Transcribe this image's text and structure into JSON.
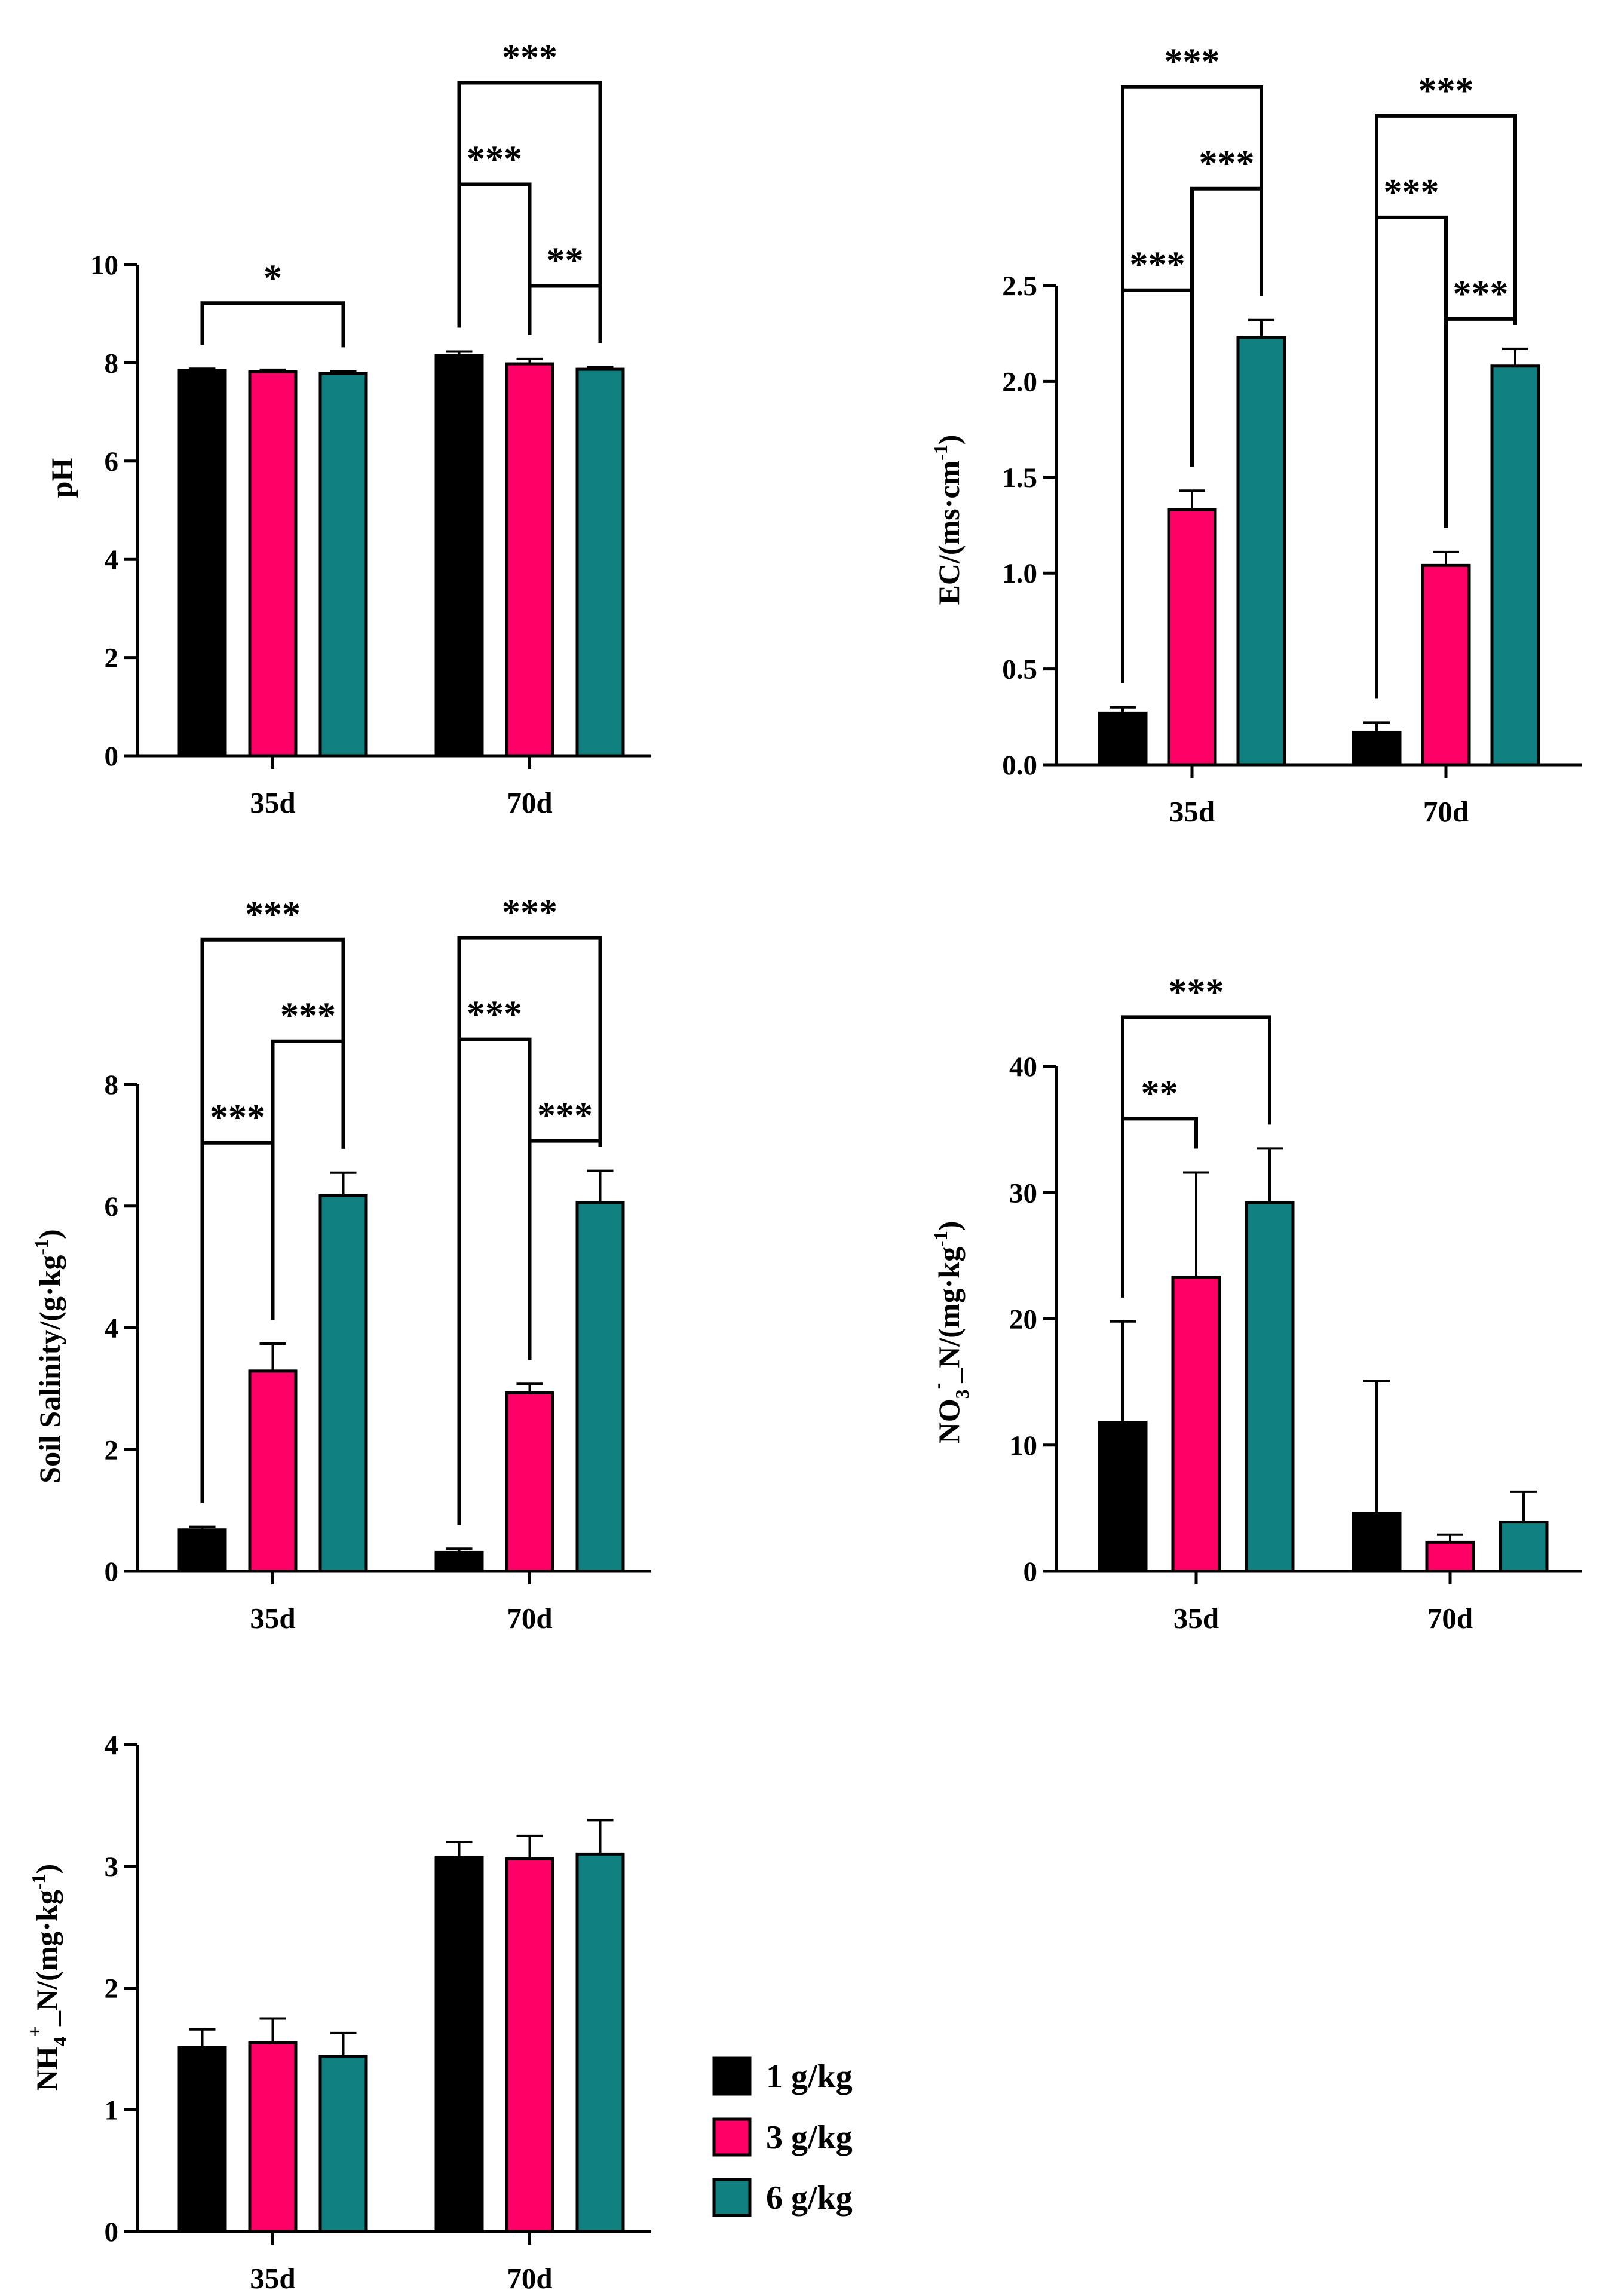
{
  "legend": {
    "items": [
      {
        "label": "1 g/kg",
        "color": "#000000"
      },
      {
        "label": "3 g/kg",
        "color": "#FF0066"
      },
      {
        "label": "6 g/kg",
        "color": "#108080"
      }
    ]
  },
  "chart_data": [
    {
      "id": "ph",
      "type": "bar",
      "title": "",
      "ylabel": "pH",
      "ylim": [
        0,
        10
      ],
      "yticks": [
        "0",
        "2",
        "4",
        "6",
        "8",
        "10"
      ],
      "categories": [
        "35d",
        "70d"
      ],
      "series": [
        {
          "name": "1 g/kg",
          "values": [
            7.85,
            8.15
          ],
          "errors": [
            0.03,
            0.08
          ]
        },
        {
          "name": "3 g/kg",
          "values": [
            7.82,
            7.98
          ],
          "errors": [
            0.04,
            0.1
          ]
        },
        {
          "name": "6 g/kg",
          "values": [
            7.78,
            7.87
          ],
          "errors": [
            0.05,
            0.05
          ]
        }
      ],
      "significance": [
        {
          "category": 0,
          "from": 0,
          "to": 2,
          "level": 1,
          "label": "*"
        },
        {
          "category": 1,
          "from": 1,
          "to": 2,
          "level": 1,
          "label": "**"
        },
        {
          "category": 1,
          "from": 0,
          "to": 1,
          "level": 2,
          "label": "***"
        },
        {
          "category": 1,
          "from": 0,
          "to": 2,
          "level": 3,
          "label": "***"
        }
      ]
    },
    {
      "id": "ec",
      "type": "bar",
      "title": "",
      "ylabel": "EC/(ms·cm-1)",
      "ylim": [
        0,
        2.5
      ],
      "yticks": [
        "0.0",
        "0.5",
        "1.0",
        "1.5",
        "2.0",
        "2.5"
      ],
      "categories": [
        "35d",
        "70d"
      ],
      "series": [
        {
          "name": "1 g/kg",
          "values": [
            0.27,
            0.17
          ],
          "errors": [
            0.03,
            0.05
          ]
        },
        {
          "name": "3 g/kg",
          "values": [
            1.33,
            1.04
          ],
          "errors": [
            0.1,
            0.07
          ]
        },
        {
          "name": "6 g/kg",
          "values": [
            2.23,
            2.08
          ],
          "errors": [
            0.09,
            0.09
          ]
        }
      ],
      "significance": [
        {
          "category": 0,
          "from": 0,
          "to": 1,
          "level": 1,
          "label": "***"
        },
        {
          "category": 0,
          "from": 1,
          "to": 2,
          "level": 2,
          "label": "***"
        },
        {
          "category": 0,
          "from": 0,
          "to": 2,
          "level": 3,
          "label": "***"
        },
        {
          "category": 1,
          "from": 1,
          "to": 2,
          "level": 1,
          "label": "***"
        },
        {
          "category": 1,
          "from": 0,
          "to": 1,
          "level": 2,
          "label": "***"
        },
        {
          "category": 1,
          "from": 0,
          "to": 2,
          "level": 3,
          "label": "***"
        }
      ]
    },
    {
      "id": "salinity",
      "type": "bar",
      "title": "",
      "ylabel": "Soil Salinity/(g·kg-1)",
      "ylim": [
        0,
        8
      ],
      "yticks": [
        "0",
        "2",
        "4",
        "6",
        "8"
      ],
      "categories": [
        "35d",
        "70d"
      ],
      "series": [
        {
          "name": "1 g/kg",
          "values": [
            0.68,
            0.31
          ],
          "errors": [
            0.05,
            0.06
          ]
        },
        {
          "name": "3 g/kg",
          "values": [
            3.29,
            2.93
          ],
          "errors": [
            0.45,
            0.15
          ]
        },
        {
          "name": "6 g/kg",
          "values": [
            6.17,
            6.06
          ],
          "errors": [
            0.38,
            0.52
          ]
        }
      ],
      "significance": [
        {
          "category": 0,
          "from": 0,
          "to": 1,
          "level": 1,
          "label": "***"
        },
        {
          "category": 0,
          "from": 1,
          "to": 2,
          "level": 2,
          "label": "***"
        },
        {
          "category": 0,
          "from": 0,
          "to": 2,
          "level": 3,
          "label": "***"
        },
        {
          "category": 1,
          "from": 1,
          "to": 2,
          "level": 1,
          "label": "***"
        },
        {
          "category": 1,
          "from": 0,
          "to": 1,
          "level": 2,
          "label": "***"
        },
        {
          "category": 1,
          "from": 0,
          "to": 2,
          "level": 3,
          "label": "***"
        }
      ]
    },
    {
      "id": "no3",
      "type": "bar",
      "title": "",
      "ylabel": "NO3-_N/(mg·kg-1)",
      "ylim": [
        0,
        40
      ],
      "yticks": [
        "0",
        "10",
        "20",
        "30",
        "40"
      ],
      "categories": [
        "35d",
        "70d"
      ],
      "series": [
        {
          "name": "1 g/kg",
          "values": [
            11.8,
            4.6
          ],
          "errors": [
            8.0,
            10.5
          ]
        },
        {
          "name": "3 g/kg",
          "values": [
            23.3,
            2.3
          ],
          "errors": [
            8.3,
            0.6
          ]
        },
        {
          "name": "6 g/kg",
          "values": [
            29.2,
            3.9
          ],
          "errors": [
            4.3,
            2.4
          ]
        }
      ],
      "significance": [
        {
          "category": 0,
          "from": 0,
          "to": 1,
          "level": 1,
          "label": "**"
        },
        {
          "category": 0,
          "from": 0,
          "to": 2,
          "level": 2,
          "label": "***"
        }
      ]
    },
    {
      "id": "nh4",
      "type": "bar",
      "title": "",
      "ylabel": "NH4+_N/(mg·kg-1)",
      "ylim": [
        0,
        4
      ],
      "yticks": [
        "0",
        "1",
        "2",
        "3",
        "4"
      ],
      "categories": [
        "35d",
        "70d"
      ],
      "series": [
        {
          "name": "1 g/kg",
          "values": [
            1.51,
            3.07
          ],
          "errors": [
            0.15,
            0.13
          ]
        },
        {
          "name": "3 g/kg",
          "values": [
            1.55,
            3.06
          ],
          "errors": [
            0.2,
            0.19
          ]
        },
        {
          "name": "6 g/kg",
          "values": [
            1.44,
            3.1
          ],
          "errors": [
            0.19,
            0.28
          ]
        }
      ],
      "significance": []
    }
  ]
}
